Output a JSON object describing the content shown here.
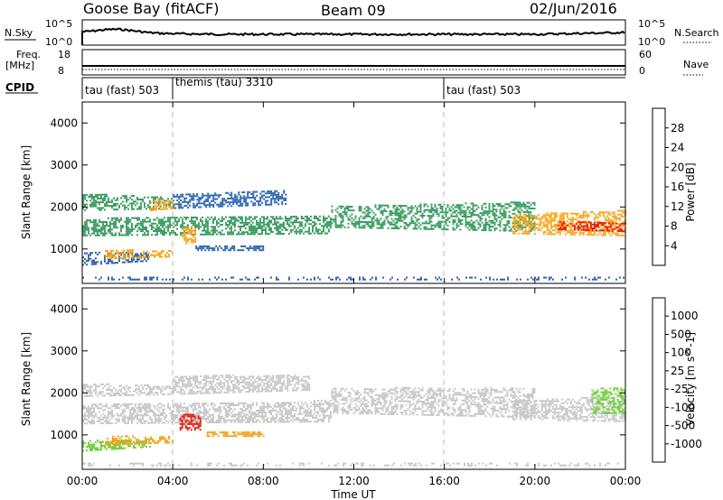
{
  "header": {
    "station": "Goose Bay (fitACF)",
    "beam": "Beam 09",
    "date": "02/Jun/2016"
  },
  "panels": {
    "nsky": {
      "left_label": "N.Sky",
      "left_ticks": [
        "10^5",
        "10^0"
      ],
      "right_ticks": [
        "10^5",
        "10^0"
      ],
      "right_label": "N.Search"
    },
    "freq": {
      "left_label_1": "Freq.",
      "left_label_2": "[MHz]",
      "left_ticks": [
        "18",
        "8"
      ],
      "right_ticks": [
        "60",
        "0"
      ],
      "right_label": "Nave"
    },
    "cpid": {
      "label": "CPID",
      "segments": [
        {
          "label": "tau (fast) 503",
          "start_h": 0
        },
        {
          "label": "themis (tau) 3310",
          "start_h": 4
        },
        {
          "label": "tau (fast) 503",
          "start_h": 16
        }
      ]
    }
  },
  "chart_data": [
    {
      "type": "heatmap",
      "name": "power",
      "ylabel": "Slant Range [km]",
      "ylim": [
        180,
        4500
      ],
      "xlim": [
        0,
        24
      ],
      "yticks": [
        "1000",
        "2000",
        "3000",
        "4000"
      ],
      "colorbar_label": "Power [dB]",
      "colorbar_ticks": [
        "28",
        "24",
        "20",
        "16",
        "12",
        "8",
        "4"
      ],
      "colorbar_colors": [
        "#ee1a0a",
        "#f66a12",
        "#f8a51a",
        "#f3e32a",
        "#8bc53a",
        "#3b9c62",
        "#2a64b0",
        "#1420e0"
      ]
    },
    {
      "type": "heatmap",
      "name": "velocity",
      "ylabel": "Slant Range [km]",
      "ylim": [
        180,
        4500
      ],
      "xlim": [
        0,
        24
      ],
      "yticks": [
        "1000",
        "2000",
        "3000",
        "4000"
      ],
      "colorbar_label": "Velocity [m s^-1]",
      "colorbar_ticks": [
        "1000",
        "500",
        "100",
        "25",
        "-25",
        "-100",
        "-500",
        "-1000"
      ],
      "colorbar_colors": [
        "#1a2ea8",
        "#2e8a7a",
        "#3e9a45",
        "#6fcf3a",
        "#c8c8c8",
        "#c8c8c8",
        "#f5a21a",
        "#f06a12",
        "#ea1a0a"
      ]
    }
  ],
  "xaxis": {
    "label": "Time UT",
    "ticks": [
      "00:00",
      "04:00",
      "08:00",
      "12:00",
      "16:00",
      "20:00",
      "00:00"
    ]
  },
  "colors": {
    "power_main": "#3b9c62",
    "power_low": "#2a64b0",
    "power_hi": "#f8a51a",
    "power_peak": "#ee1a0a",
    "velocity_gray": "#c8c8c8",
    "velocity_orange": "#f5a21a",
    "velocity_green": "#6fcf3a",
    "velocity_red": "#ea1a0a"
  }
}
